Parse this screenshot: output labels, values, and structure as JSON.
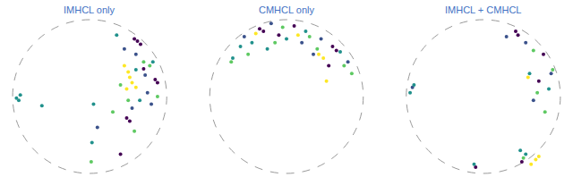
{
  "chart_data": [
    {
      "type": "scatter",
      "title": "IMHCL only",
      "xlim": [
        -1,
        1
      ],
      "ylim": [
        -1,
        1
      ],
      "tick_labels": false,
      "marker": "circle",
      "series": [
        {
          "color": "#440154",
          "x": [
            0.62,
            0.66,
            0.7,
            0.85,
            0.88,
            0.48,
            0.52,
            0.4,
            0.58
          ],
          "y": [
            0.72,
            0.68,
            0.36,
            0.22,
            0.18,
            -0.28,
            -0.32,
            -0.75,
            0.75
          ]
        },
        {
          "color": "#3b528b",
          "x": [
            0.6,
            0.75,
            0.8,
            0.55,
            0.1,
            0.45,
            0.72
          ],
          "y": [
            0.55,
            0.05,
            -0.1,
            -0.15,
            -0.4,
            0.62,
            0.28
          ]
        },
        {
          "color": "#21918c",
          "x": [
            -0.95,
            -0.92,
            -0.9,
            -0.62,
            0.35,
            0.6,
            0.82,
            0.05,
            0.03,
            0.65
          ],
          "y": [
            -0.02,
            -0.05,
            0.02,
            -0.12,
            0.8,
            0.35,
            0.45,
            -0.1,
            -0.6,
            -0.05
          ]
        },
        {
          "color": "#5ec962",
          "x": [
            0.7,
            0.78,
            0.5,
            0.88,
            0.4,
            0.58,
            0.02,
            0.3
          ],
          "y": [
            0.45,
            0.4,
            -0.05,
            0.0,
            0.15,
            -0.45,
            -0.85,
            -0.2
          ]
        },
        {
          "color": "#fde725",
          "x": [
            0.5,
            0.52,
            0.55,
            0.48,
            0.6,
            0.45
          ],
          "y": [
            0.32,
            0.25,
            0.18,
            0.1,
            0.12,
            0.4
          ]
        }
      ]
    },
    {
      "type": "scatter",
      "title": "CMHCL only",
      "xlim": [
        -1,
        1
      ],
      "ylim": [
        -1,
        1
      ],
      "tick_labels": false,
      "marker": "circle",
      "series": [
        {
          "color": "#440154",
          "x": [
            -0.35,
            -0.3,
            0.6,
            0.65,
            -0.1,
            0.55,
            0.1
          ],
          "y": [
            0.88,
            0.85,
            0.65,
            0.6,
            0.8,
            0.4,
            0.92
          ]
        },
        {
          "color": "#3b528b",
          "x": [
            -0.55,
            -0.2,
            0.2,
            0.45,
            0.8,
            0.35
          ],
          "y": [
            0.78,
            0.95,
            0.7,
            0.75,
            0.45,
            0.55
          ]
        },
        {
          "color": "#21918c",
          "x": [
            -0.7,
            -0.6,
            -0.45,
            0.0,
            0.25,
            0.7,
            -0.25
          ],
          "y": [
            0.5,
            0.65,
            0.7,
            0.75,
            0.85,
            0.58,
            0.62
          ]
        },
        {
          "color": "#5ec962",
          "x": [
            -0.72,
            -0.5,
            -0.05,
            0.3,
            0.75,
            0.85,
            0.4,
            -0.15
          ],
          "y": [
            0.45,
            0.55,
            0.9,
            0.78,
            0.4,
            0.3,
            0.62,
            0.7
          ]
        },
        {
          "color": "#fde725",
          "x": [
            0.42,
            0.48,
            0.15,
            0.52,
            -0.4
          ],
          "y": [
            0.55,
            0.5,
            0.8,
            0.2,
            0.82
          ]
        }
      ]
    },
    {
      "type": "scatter",
      "title": "IMHCL + CMHCL",
      "xlim": [
        -1,
        1
      ],
      "ylim": [
        -1,
        1
      ],
      "tick_labels": false,
      "marker": "circle",
      "series": [
        {
          "color": "#440154",
          "x": [
            0.42,
            0.45,
            0.78,
            0.72,
            -0.1,
            0.5
          ],
          "y": [
            0.85,
            0.8,
            0.55,
            0.2,
            -0.92,
            -0.85
          ]
        },
        {
          "color": "#3b528b",
          "x": [
            -0.92,
            0.55,
            0.88,
            0.65,
            0.3
          ],
          "y": [
            0.12,
            0.7,
            0.3,
            -0.05,
            0.78
          ]
        },
        {
          "color": "#21918c",
          "x": [
            -0.95,
            -0.9,
            0.6,
            0.85,
            0.48,
            0.55,
            -0.12
          ],
          "y": [
            0.05,
            0.15,
            0.3,
            0.1,
            -0.7,
            -0.75,
            -0.88
          ]
        },
        {
          "color": "#5ec962",
          "x": [
            0.65,
            0.9,
            0.7,
            0.52,
            0.8
          ],
          "y": [
            0.6,
            0.35,
            0.05,
            -0.8,
            -0.2
          ]
        },
        {
          "color": "#fde725",
          "x": [
            0.68,
            0.72,
            0.62,
            0.58
          ],
          "y": [
            -0.82,
            -0.78,
            -0.88,
            0.25
          ]
        }
      ]
    }
  ]
}
